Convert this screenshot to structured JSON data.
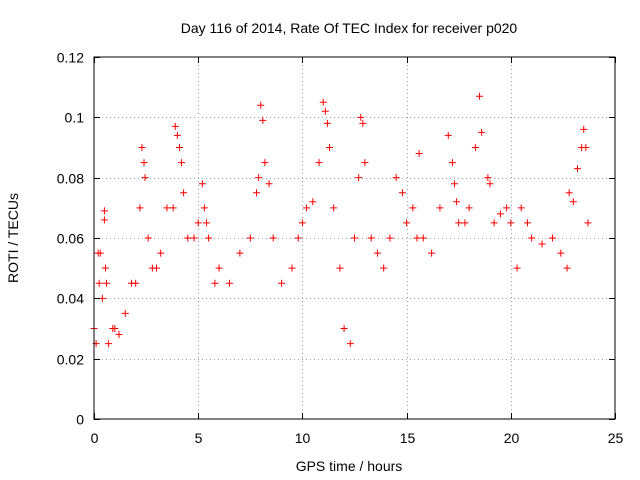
{
  "chart_data": {
    "type": "scatter",
    "title": "Day 116 of 2014, Rate Of TEC Index for receiver p020",
    "xlabel": "GPS time / hours",
    "ylabel": "ROTI / TECUs",
    "xlim": [
      0,
      25
    ],
    "ylim": [
      0,
      0.12
    ],
    "x_ticks": [
      0,
      5,
      10,
      15,
      20,
      25
    ],
    "y_ticks": [
      0,
      0.02,
      0.04,
      0.06,
      0.08,
      0.1,
      0.12
    ],
    "x_tick_labels": [
      "0",
      "5",
      "10",
      "15",
      "20",
      "25"
    ],
    "y_tick_labels": [
      "0",
      "0.02",
      "0.04",
      "0.06",
      "0.08",
      "0.1",
      "0.12"
    ],
    "grid": true,
    "marker": "+",
    "series": [
      {
        "name": "ROTI",
        "color": "#ff0000",
        "x": [
          0.0,
          0.1,
          0.2,
          0.25,
          0.3,
          0.4,
          0.5,
          0.5,
          0.55,
          0.6,
          0.7,
          0.9,
          1.0,
          1.2,
          1.5,
          1.8,
          2.0,
          2.2,
          2.3,
          2.4,
          2.45,
          2.6,
          2.8,
          3.0,
          3.2,
          3.5,
          3.8,
          3.9,
          4.0,
          4.1,
          4.2,
          4.3,
          4.5,
          4.8,
          5.0,
          5.2,
          5.3,
          5.4,
          5.5,
          5.8,
          6.0,
          6.5,
          7.0,
          7.5,
          7.8,
          7.9,
          8.0,
          8.1,
          8.2,
          8.4,
          8.6,
          9.0,
          9.5,
          9.8,
          10.0,
          10.2,
          10.5,
          10.8,
          11.0,
          11.1,
          11.2,
          11.3,
          11.5,
          11.8,
          12.0,
          12.3,
          12.5,
          12.7,
          12.8,
          12.9,
          13.0,
          13.3,
          13.6,
          13.9,
          14.2,
          14.5,
          14.8,
          15.0,
          15.3,
          15.5,
          15.6,
          15.8,
          16.2,
          16.6,
          17.0,
          17.2,
          17.3,
          17.4,
          17.5,
          17.8,
          18.0,
          18.3,
          18.5,
          18.6,
          18.9,
          19.0,
          19.2,
          19.5,
          19.8,
          20.0,
          20.3,
          20.5,
          20.8,
          21.0,
          21.5,
          22.0,
          22.4,
          22.7,
          22.8,
          23.0,
          23.2,
          23.4,
          23.5,
          23.6,
          23.7
        ],
        "y": [
          0.03,
          0.025,
          0.055,
          0.045,
          0.055,
          0.04,
          0.069,
          0.066,
          0.05,
          0.045,
          0.025,
          0.03,
          0.03,
          0.028,
          0.035,
          0.045,
          0.045,
          0.07,
          0.09,
          0.085,
          0.08,
          0.06,
          0.05,
          0.05,
          0.055,
          0.07,
          0.07,
          0.097,
          0.094,
          0.09,
          0.085,
          0.075,
          0.06,
          0.06,
          0.065,
          0.078,
          0.07,
          0.065,
          0.06,
          0.045,
          0.05,
          0.045,
          0.055,
          0.06,
          0.075,
          0.08,
          0.104,
          0.099,
          0.085,
          0.078,
          0.06,
          0.045,
          0.05,
          0.06,
          0.065,
          0.07,
          0.072,
          0.085,
          0.105,
          0.102,
          0.098,
          0.09,
          0.07,
          0.05,
          0.03,
          0.025,
          0.06,
          0.08,
          0.1,
          0.098,
          0.085,
          0.06,
          0.055,
          0.05,
          0.06,
          0.08,
          0.075,
          0.065,
          0.07,
          0.06,
          0.088,
          0.06,
          0.055,
          0.07,
          0.094,
          0.085,
          0.078,
          0.072,
          0.065,
          0.065,
          0.07,
          0.09,
          0.107,
          0.095,
          0.08,
          0.078,
          0.065,
          0.068,
          0.07,
          0.065,
          0.05,
          0.07,
          0.065,
          0.06,
          0.058,
          0.06,
          0.055,
          0.05,
          0.075,
          0.072,
          0.083,
          0.09,
          0.096,
          0.09,
          0.065
        ]
      }
    ]
  }
}
